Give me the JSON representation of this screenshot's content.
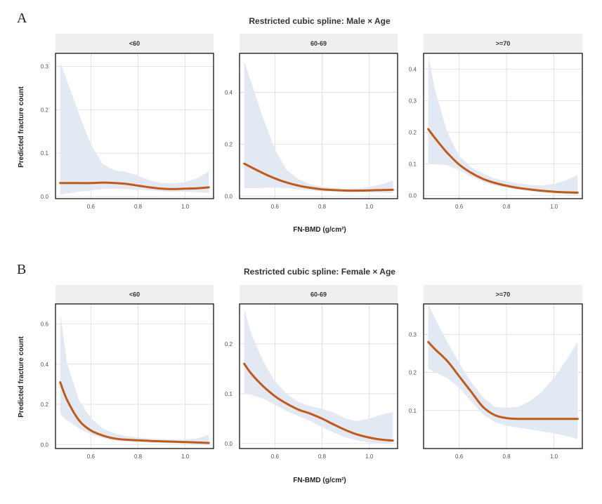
{
  "colors": {
    "line": "#c05a1b",
    "ci_band": "#e3e9f2",
    "strip": "#efefef"
  },
  "chart_data": [
    {
      "type": "line",
      "label": "A",
      "title": "Restricted cubic spline: Male × Age",
      "xlabel": "FN-BMD (g/cm²)",
      "ylabel": "Predicted fracture count",
      "facets": [
        {
          "name": "<60",
          "xlim": [
            0.45,
            1.12
          ],
          "ylim": [
            -0.005,
            0.33
          ],
          "xticks": [
            0.6,
            0.8,
            1.0
          ],
          "xtick_labels": [
            "0.6",
            "0.8",
            "1.0"
          ],
          "yticks": [
            0.0,
            0.1,
            0.2,
            0.3
          ],
          "ytick_labels": [
            "0.0",
            "0.1",
            "0.2",
            "0.3"
          ],
          "x": [
            0.47,
            0.55,
            0.6,
            0.65,
            0.7,
            0.75,
            0.8,
            0.85,
            0.9,
            0.95,
            1.0,
            1.05,
            1.1
          ],
          "y": [
            0.031,
            0.031,
            0.031,
            0.032,
            0.031,
            0.029,
            0.025,
            0.021,
            0.018,
            0.017,
            0.018,
            0.019,
            0.021
          ],
          "lower": [
            0.004,
            0.011,
            0.014,
            0.017,
            0.018,
            0.017,
            0.016,
            0.014,
            0.012,
            0.011,
            0.011,
            0.01,
            0.008
          ],
          "upper": [
            0.31,
            0.19,
            0.12,
            0.075,
            0.06,
            0.057,
            0.048,
            0.037,
            0.031,
            0.03,
            0.033,
            0.042,
            0.058
          ]
        },
        {
          "name": "60-69",
          "xlim": [
            0.45,
            1.12
          ],
          "ylim": [
            -0.01,
            0.55
          ],
          "xticks": [
            0.6,
            0.8,
            1.0
          ],
          "xtick_labels": [
            "0.6",
            "0.8",
            "1.0"
          ],
          "yticks": [
            0.0,
            0.2,
            0.4
          ],
          "ytick_labels": [
            "0.0",
            "0.2",
            "0.4"
          ],
          "x": [
            0.47,
            0.55,
            0.6,
            0.65,
            0.7,
            0.75,
            0.8,
            0.85,
            0.9,
            0.95,
            1.0,
            1.05,
            1.1
          ],
          "y": [
            0.125,
            0.088,
            0.068,
            0.052,
            0.04,
            0.032,
            0.026,
            0.023,
            0.021,
            0.021,
            0.022,
            0.023,
            0.024
          ],
          "lower": [
            0.03,
            0.031,
            0.032,
            0.031,
            0.026,
            0.022,
            0.018,
            0.017,
            0.016,
            0.015,
            0.014,
            0.013,
            0.011
          ],
          "upper": [
            0.52,
            0.3,
            0.18,
            0.1,
            0.065,
            0.045,
            0.036,
            0.031,
            0.029,
            0.03,
            0.035,
            0.045,
            0.06
          ]
        },
        {
          "name": ">=70",
          "xlim": [
            0.45,
            1.12
          ],
          "ylim": [
            -0.01,
            0.45
          ],
          "xticks": [
            0.6,
            0.8,
            1.0
          ],
          "xtick_labels": [
            "0.6",
            "0.8",
            "1.0"
          ],
          "yticks": [
            0.0,
            0.1,
            0.2,
            0.3,
            0.4
          ],
          "ytick_labels": [
            "0.0",
            "0.1",
            "0.2",
            "0.3",
            "0.4"
          ],
          "x": [
            0.47,
            0.5,
            0.55,
            0.6,
            0.65,
            0.7,
            0.75,
            0.8,
            0.85,
            0.9,
            0.95,
            1.0,
            1.05,
            1.1
          ],
          "y": [
            0.21,
            0.18,
            0.135,
            0.098,
            0.072,
            0.053,
            0.04,
            0.031,
            0.024,
            0.019,
            0.015,
            0.012,
            0.01,
            0.009
          ],
          "lower": [
            0.1,
            0.1,
            0.096,
            0.081,
            0.06,
            0.044,
            0.032,
            0.025,
            0.018,
            0.013,
            0.009,
            0.006,
            0.004,
            0.002
          ],
          "upper": [
            0.44,
            0.33,
            0.2,
            0.125,
            0.09,
            0.07,
            0.054,
            0.045,
            0.038,
            0.033,
            0.032,
            0.037,
            0.048,
            0.065
          ]
        }
      ]
    },
    {
      "type": "line",
      "label": "B",
      "title": "Restricted cubic spline: Female × Age",
      "xlabel": "FN-BMD (g/cm²)",
      "ylabel": "Predicted fracture count",
      "facets": [
        {
          "name": "<60",
          "xlim": [
            0.45,
            1.12
          ],
          "ylim": [
            -0.02,
            0.7
          ],
          "xticks": [
            0.6,
            0.8,
            1.0
          ],
          "xtick_labels": [
            "0.6",
            "0.8",
            "1.0"
          ],
          "yticks": [
            0.0,
            0.2,
            0.4,
            0.6
          ],
          "ytick_labels": [
            "0.0",
            "0.2",
            "0.4",
            "0.6"
          ],
          "x": [
            0.47,
            0.5,
            0.55,
            0.6,
            0.65,
            0.7,
            0.75,
            0.8,
            0.85,
            0.9,
            0.95,
            1.0,
            1.05,
            1.1
          ],
          "y": [
            0.31,
            0.22,
            0.12,
            0.07,
            0.045,
            0.03,
            0.024,
            0.021,
            0.018,
            0.016,
            0.014,
            0.012,
            0.01,
            0.008
          ],
          "lower": [
            0.15,
            0.12,
            0.08,
            0.05,
            0.032,
            0.02,
            0.015,
            0.012,
            0.01,
            0.008,
            0.006,
            0.004,
            0.002,
            0.001
          ],
          "upper": [
            0.65,
            0.4,
            0.22,
            0.13,
            0.08,
            0.055,
            0.042,
            0.035,
            0.03,
            0.027,
            0.025,
            0.025,
            0.03,
            0.05
          ]
        },
        {
          "name": "60-69",
          "xlim": [
            0.45,
            1.12
          ],
          "ylim": [
            -0.01,
            0.28
          ],
          "xticks": [
            0.6,
            0.8,
            1.0
          ],
          "xtick_labels": [
            "0.6",
            "0.8",
            "1.0"
          ],
          "yticks": [
            0.0,
            0.1,
            0.2
          ],
          "ytick_labels": [
            "0.0",
            "0.1",
            "0.2"
          ],
          "x": [
            0.47,
            0.5,
            0.55,
            0.6,
            0.65,
            0.7,
            0.75,
            0.8,
            0.85,
            0.9,
            0.95,
            1.0,
            1.05,
            1.1
          ],
          "y": [
            0.16,
            0.14,
            0.115,
            0.095,
            0.08,
            0.068,
            0.06,
            0.05,
            0.038,
            0.027,
            0.018,
            0.012,
            0.008,
            0.006
          ],
          "lower": [
            0.1,
            0.098,
            0.09,
            0.078,
            0.065,
            0.055,
            0.045,
            0.033,
            0.022,
            0.012,
            0.006,
            0.002,
            0.001,
            0.0
          ],
          "upper": [
            0.27,
            0.22,
            0.165,
            0.125,
            0.1,
            0.083,
            0.075,
            0.07,
            0.062,
            0.05,
            0.045,
            0.05,
            0.058,
            0.063
          ]
        },
        {
          "name": ">=70",
          "xlim": [
            0.45,
            1.12
          ],
          "ylim": [
            0.0,
            0.38
          ],
          "xticks": [
            0.6,
            0.8,
            1.0
          ],
          "xtick_labels": [
            "0.6",
            "0.8",
            "1.0"
          ],
          "yticks": [
            0.1,
            0.2,
            0.3
          ],
          "ytick_labels": [
            "0.1",
            "0.2",
            "0.3"
          ],
          "x": [
            0.47,
            0.5,
            0.55,
            0.6,
            0.65,
            0.7,
            0.75,
            0.8,
            0.85,
            0.9,
            0.95,
            1.0,
            1.05,
            1.1
          ],
          "y": [
            0.28,
            0.26,
            0.23,
            0.19,
            0.15,
            0.11,
            0.088,
            0.08,
            0.078,
            0.078,
            0.078,
            0.078,
            0.078,
            0.078
          ],
          "lower": [
            0.21,
            0.2,
            0.185,
            0.16,
            0.125,
            0.09,
            0.07,
            0.06,
            0.055,
            0.05,
            0.045,
            0.04,
            0.033,
            0.025
          ],
          "upper": [
            0.38,
            0.34,
            0.28,
            0.225,
            0.175,
            0.135,
            0.11,
            0.107,
            0.11,
            0.125,
            0.15,
            0.185,
            0.23,
            0.28
          ]
        }
      ]
    }
  ]
}
